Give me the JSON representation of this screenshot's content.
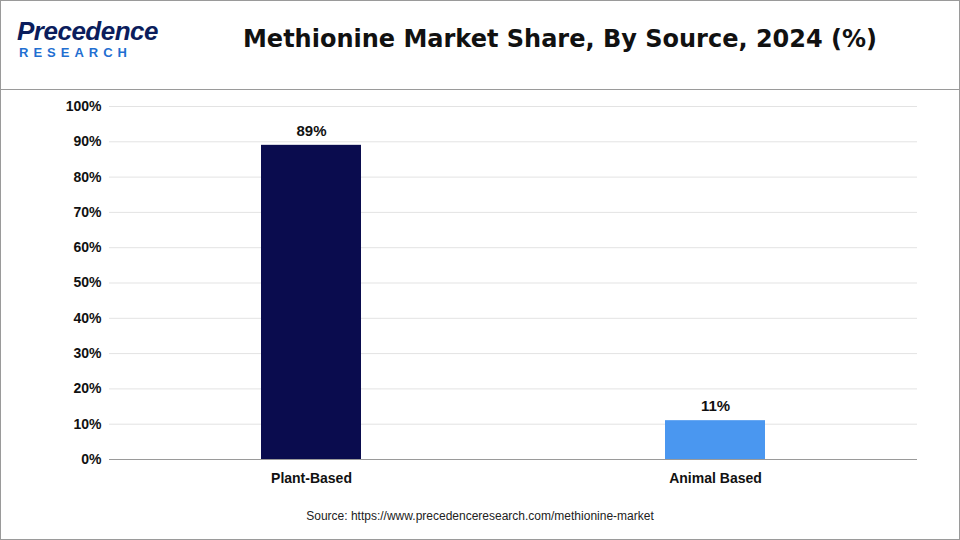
{
  "chart_data": {
    "type": "bar",
    "title": "Methionine Market Share, By Source, 2024 (%)",
    "logo": [
      "Precedence",
      "RESEARCH"
    ],
    "source": "Source: https://www.precedenceresearch.com/methionine-market",
    "categories": [
      "Plant-Based",
      "Animal Based"
    ],
    "values": [
      89,
      11
    ],
    "value_labels": [
      "89%",
      "11%"
    ],
    "colors": [
      "#0a0c4e",
      "#4a97f0"
    ],
    "ylim": [
      0,
      100
    ],
    "yticks": [
      {
        "value": 0,
        "label": "0%"
      },
      {
        "value": 10,
        "label": "10%"
      },
      {
        "value": 20,
        "label": "20%"
      },
      {
        "value": 30,
        "label": "30%"
      },
      {
        "value": 40,
        "label": "40%"
      },
      {
        "value": 50,
        "label": "50%"
      },
      {
        "value": 60,
        "label": "60%"
      },
      {
        "value": 70,
        "label": "70%"
      },
      {
        "value": 80,
        "label": "80%"
      },
      {
        "value": 90,
        "label": "90%"
      },
      {
        "value": 100,
        "label": "100%"
      }
    ],
    "grid": true,
    "data_labels": true
  }
}
